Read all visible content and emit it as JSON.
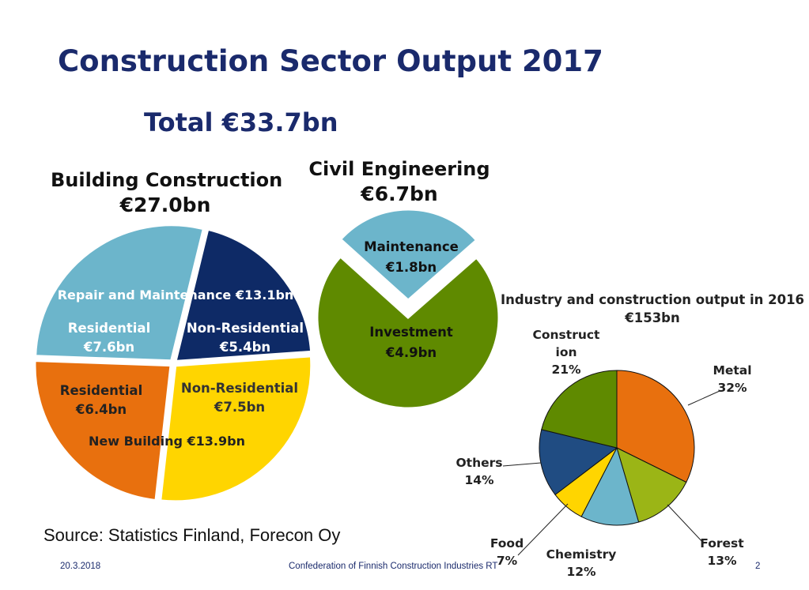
{
  "slide": {
    "title": "Construction Sector Output 2017",
    "subtitle": "Total €33.7bn",
    "source": "Source: Statistics Finland, Forecon Oy",
    "date": "20.3.2018",
    "organization": "Confederation of Finnish Construction Industries RT",
    "page_number": "2"
  },
  "colors": {
    "light_blue": "#6cb5cb",
    "navy": "#0e2a66",
    "orange": "#e8700e",
    "yellow": "#ffd500",
    "green": "#5f8a00",
    "lime": "#9bb516",
    "dark_blue": "#204c82"
  },
  "chart_data": [
    {
      "type": "pie",
      "title": "Building Construction",
      "total_label": "€27.0bn",
      "group_labels": [
        "Repair and Maintenance €13.1bn",
        "New Building €13.9bn"
      ],
      "slices": [
        {
          "name": "Residential",
          "value_label": "€7.6bn",
          "value": 7.6,
          "group": "Repair and Maintenance",
          "color": "#6cb5cb"
        },
        {
          "name": "Non-Residential",
          "value_label": "€5.4bn",
          "value": 5.4,
          "group": "Repair and Maintenance",
          "color": "#0e2a66"
        },
        {
          "name": "Non-Residential",
          "value_label": "€7.5bn",
          "value": 7.5,
          "group": "New Building",
          "color": "#ffd500"
        },
        {
          "name": "Residential",
          "value_label": "€6.4bn",
          "value": 6.4,
          "group": "New Building",
          "color": "#e8700e"
        }
      ]
    },
    {
      "type": "pie",
      "title": "Civil Engineering",
      "total_label": "€6.7bn",
      "slices": [
        {
          "name": "Maintenance",
          "value_label": "€1.8bn",
          "value": 1.8,
          "color": "#6cb5cb"
        },
        {
          "name": "Investment",
          "value_label": "€4.9bn",
          "value": 4.9,
          "color": "#5f8a00"
        }
      ]
    },
    {
      "type": "pie",
      "title": "Industry and construction output in 2016",
      "total_label": "€153bn",
      "slices": [
        {
          "name": "Metal",
          "percent_label": "32%",
          "value": 32,
          "color": "#e8700e"
        },
        {
          "name": "Forest",
          "percent_label": "13%",
          "value": 13,
          "color": "#9bb516"
        },
        {
          "name": "Chemistry",
          "percent_label": "12%",
          "value": 12,
          "color": "#6cb5cb"
        },
        {
          "name": "Food",
          "percent_label": "7%",
          "value": 7,
          "color": "#ffd500"
        },
        {
          "name": "Others",
          "percent_label": "14%",
          "value": 14,
          "color": "#204c82"
        },
        {
          "name": "Construct\nion",
          "percent_label": "21%",
          "value": 21,
          "color": "#5f8a00"
        }
      ]
    }
  ]
}
